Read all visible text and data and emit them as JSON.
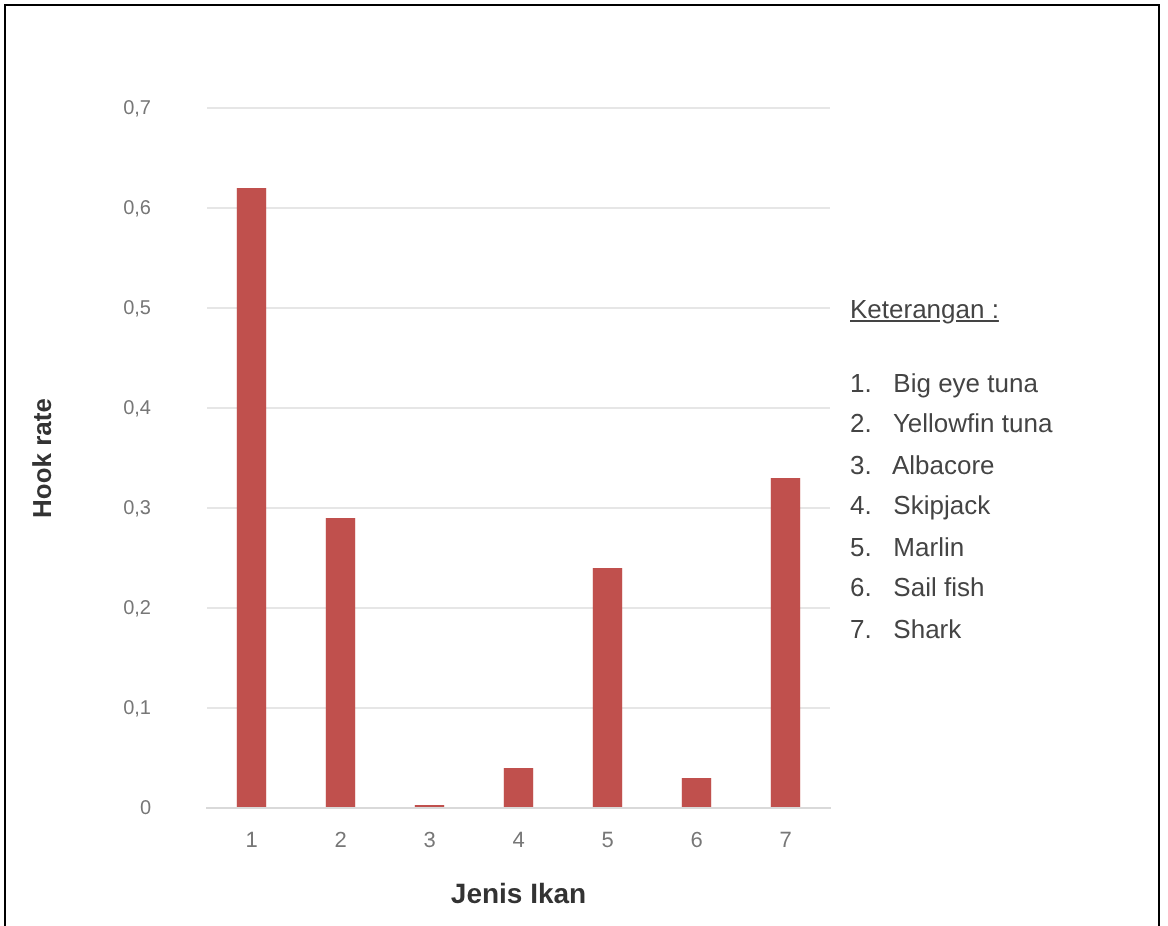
{
  "chart_data": {
    "type": "bar",
    "xlabel": "Jenis Ikan",
    "ylabel": "Hook rate",
    "categories": [
      "1",
      "2",
      "3",
      "4",
      "5",
      "6",
      "7"
    ],
    "values": [
      0.62,
      0.29,
      0.003,
      0.04,
      0.24,
      0.03,
      0.33
    ],
    "color": "#c0504d",
    "ylim": [
      0,
      0.7
    ],
    "yticks": [
      {
        "value": 0,
        "label": "0"
      },
      {
        "value": 0.1,
        "label": "0,1"
      },
      {
        "value": 0.2,
        "label": "0,2"
      },
      {
        "value": 0.3,
        "label": "0,3"
      },
      {
        "value": 0.4,
        "label": "0,4"
      },
      {
        "value": 0.5,
        "label": "0,5"
      },
      {
        "value": 0.6,
        "label": "0,6"
      },
      {
        "value": 0.7,
        "label": "0,7"
      }
    ],
    "grid": "y",
    "legend": false,
    "annotations": [
      "Keterangan :",
      "1.   Big eye tuna",
      "2.   Yellowfin tuna",
      "3.   Albacore",
      "4.   Skipjack",
      "5.   Marlin",
      "6.   Sail fish",
      "7.   Shark"
    ]
  }
}
